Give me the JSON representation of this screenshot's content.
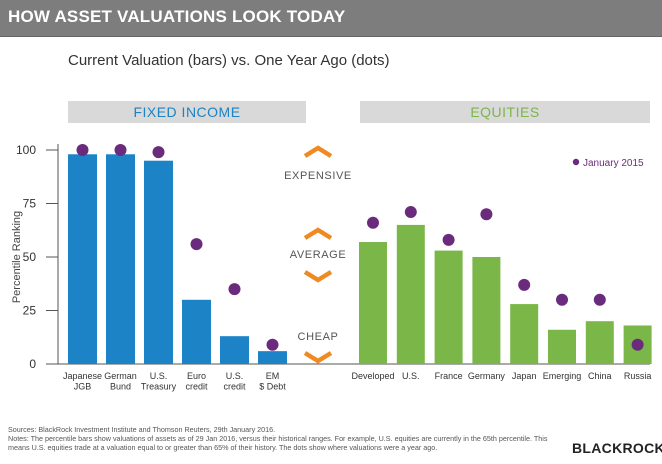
{
  "header": {
    "title": "HOW ASSET VALUATIONS LOOK TODAY"
  },
  "subtitle": "Current Valuation (bars) vs. One Year Ago (dots)",
  "panels": {
    "fixed_income": "FIXED INCOME",
    "equities": "EQUITIES"
  },
  "zones": {
    "expensive": "EXPENSIVE",
    "average": "AVERAGE",
    "cheap": "CHEAP"
  },
  "colors": {
    "fixed_income": "#1b83c6",
    "equities": "#7ab648",
    "dot": "#6b2b7c",
    "arrow": "#ef8a22"
  },
  "footer": {
    "sources": "Sources: BlackRock Investment Institute and Thomson Reuters, 29th January 2016.",
    "notes": "Notes: The percentile bars show valuations of assets as of 29 Jan 2016, versus their historical ranges. For example, U.S. equities are currently in the 65th percentile. This means U.S. equities trade at a valuation equal to or greater than 65% of their history. The dots show where valuations were a year ago."
  },
  "logo": "BLACKROCK",
  "chart_data": {
    "type": "bar",
    "ylabel": "Percentile Ranking",
    "ylim": [
      0,
      100
    ],
    "yticks": [
      0,
      25,
      50,
      75,
      100
    ],
    "legend": {
      "label": "January 2015",
      "placement": "top-right"
    },
    "groups": [
      {
        "name": "FIXED INCOME",
        "categories": [
          [
            "Japanese",
            "JGB"
          ],
          [
            "German",
            "Bund"
          ],
          [
            "U.S.",
            "Treasury"
          ],
          [
            "Euro",
            "credit"
          ],
          [
            "U.S.",
            "credit"
          ],
          [
            "EM",
            "$ Debt"
          ]
        ],
        "values": [
          98,
          98,
          95,
          30,
          13,
          6
        ],
        "dots": [
          100,
          100,
          99,
          56,
          35,
          9
        ]
      },
      {
        "name": "EQUITIES",
        "categories": [
          [
            "Developed"
          ],
          [
            "U.S."
          ],
          [
            "France"
          ],
          [
            "Germany"
          ],
          [
            "Japan"
          ],
          [
            "Emerging"
          ],
          [
            "China"
          ],
          [
            "Russia"
          ]
        ],
        "values": [
          57,
          65,
          53,
          50,
          28,
          16,
          20,
          18
        ],
        "dots": [
          66,
          71,
          58,
          70,
          37,
          30,
          30,
          9
        ]
      }
    ]
  }
}
